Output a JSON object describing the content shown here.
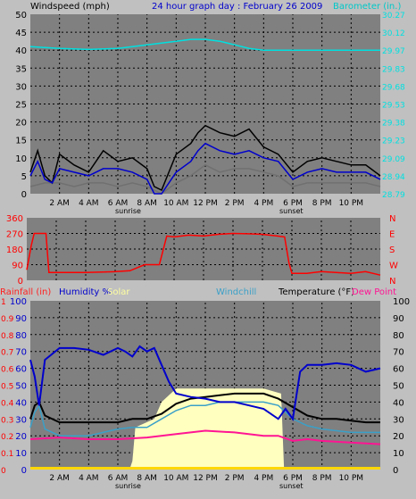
{
  "chart_data": [
    {
      "type": "line",
      "panel": "wind-baro",
      "title": "24 hour graph day : February 26 2009",
      "left_axis_label": "Windspeed (mph)",
      "right_axis_label": "Barometer (in.)",
      "left_ticks": [
        "0",
        "2",
        "4",
        "6",
        "8",
        "10",
        "12",
        "14",
        "16"
      ],
      "left_ylim": [
        0,
        16
      ],
      "left_tick_values": [
        0,
        5,
        10,
        15,
        20,
        25,
        30,
        35,
        40,
        45,
        50
      ],
      "left_tick_labels": [
        "0",
        "5",
        "10",
        "15",
        "20",
        "25",
        "30",
        "35",
        "40",
        "45",
        "50"
      ],
      "right_tick_labels": [
        "28.79",
        "28.94",
        "29.09",
        "29.23",
        "29.38",
        "29.53",
        "29.68",
        "29.83",
        "29.97",
        "30.12",
        "30.27"
      ],
      "x_tick_labels": [
        "2 AM",
        "4 AM",
        "6 AM",
        "8 AM",
        "10 AM",
        "12 PM",
        "2 PM",
        "4 PM",
        "6 PM",
        "8 PM",
        "10 PM"
      ],
      "x_annotations": [
        "sunrise",
        "sunset"
      ],
      "colors": {
        "wind_gust": "#000000",
        "wind_avg": "#0000cc",
        "wind_lo": "#707070",
        "barometer": "#00e0e0"
      },
      "series": [
        {
          "key": "barometer",
          "x": [
            0,
            2,
            4,
            6,
            8,
            9,
            10,
            11,
            12,
            13,
            14,
            15,
            16,
            18,
            20,
            22,
            24
          ],
          "values": [
            41,
            40.5,
            40.2,
            40.5,
            41.5,
            42,
            42.5,
            43,
            43,
            42.5,
            41.5,
            40.5,
            40,
            40,
            40,
            40,
            40
          ]
        },
        {
          "key": "wind_gust",
          "x": [
            0,
            0.5,
            1,
            1.5,
            2,
            3,
            4,
            5,
            6,
            7,
            8,
            8.5,
            9,
            10,
            11,
            11.5,
            12,
            13,
            14,
            15,
            16,
            17,
            18,
            19,
            20,
            21,
            22,
            23,
            24
          ],
          "values": [
            6,
            12,
            5,
            3,
            11,
            8,
            6,
            12,
            9,
            10,
            7,
            2,
            1,
            11,
            14,
            17,
            19,
            17,
            16,
            18,
            13,
            11,
            6,
            9,
            10,
            9,
            8,
            8,
            5
          ]
        },
        {
          "key": "wind_avg",
          "x": [
            0,
            0.5,
            1,
            1.5,
            2,
            3,
            4,
            5,
            6,
            7,
            8,
            8.5,
            9,
            10,
            11,
            11.5,
            12,
            13,
            14,
            15,
            16,
            17,
            18,
            19,
            20,
            21,
            22,
            23,
            24
          ],
          "values": [
            5,
            9,
            4,
            3,
            7,
            6,
            5,
            7,
            7,
            6,
            4,
            0,
            0,
            6,
            9,
            12,
            14,
            12,
            11,
            12,
            10,
            9,
            4,
            6,
            7,
            6,
            6,
            6,
            4
          ]
        },
        {
          "key": "wind_lo",
          "x": [
            0,
            1,
            2,
            3,
            4,
            5,
            6,
            7,
            8,
            9,
            10,
            11,
            12,
            13,
            14,
            15,
            16,
            17,
            18,
            19,
            20,
            21,
            22,
            23,
            24
          ],
          "values": [
            2,
            3,
            3,
            2,
            3,
            3,
            2,
            3,
            2,
            0,
            3,
            5,
            8,
            6,
            7,
            7,
            6,
            5,
            2,
            3,
            3,
            3,
            3,
            3,
            2
          ]
        }
      ]
    },
    {
      "type": "line",
      "panel": "wind-direction",
      "left_tick_labels": [
        "0",
        "90",
        "180",
        "270",
        "360"
      ],
      "right_tick_labels": [
        "N",
        "W",
        "S",
        "E",
        "N"
      ],
      "ylim": [
        0,
        360
      ],
      "colors": {
        "direction": "#ff0000"
      },
      "series": [
        {
          "key": "direction",
          "x": [
            0,
            0.3,
            0.5,
            1.3,
            1.5,
            2,
            4,
            6,
            7,
            8,
            8.5,
            9,
            9.5,
            10,
            11,
            12,
            13,
            14,
            15,
            16,
            17,
            17.5,
            17.8,
            18,
            19,
            20,
            21,
            22,
            23,
            24
          ],
          "values": [
            60,
            200,
            270,
            270,
            45,
            45,
            45,
            50,
            55,
            90,
            90,
            90,
            255,
            250,
            260,
            255,
            265,
            270,
            268,
            265,
            255,
            250,
            100,
            40,
            40,
            50,
            45,
            40,
            50,
            30
          ]
        }
      ]
    },
    {
      "type": "line",
      "panel": "temp-humidity",
      "header_labels": {
        "rainfall": "Rainfall (in)",
        "humidity": "Humidity %",
        "solar": "Solar",
        "windchill": "Windchill",
        "temperature": "Temperature (°F)",
        "dew_point": "Dew Point"
      },
      "left_outer_tick_labels": [
        "0",
        "0.1",
        "0.2",
        "0.3",
        "0.4",
        "0.5",
        "0.6",
        "0.7",
        "0.8",
        "0.9",
        "1"
      ],
      "left_inner_tick_labels": [
        "0",
        "10",
        "20",
        "30",
        "40",
        "50",
        "60",
        "70",
        "80",
        "90",
        "100"
      ],
      "right_tick_labels": [
        "0",
        "10",
        "20",
        "30",
        "40",
        "50",
        "60",
        "70",
        "80",
        "90",
        "100"
      ],
      "ylim": [
        0,
        100
      ],
      "colors": {
        "humidity": "#0000cc",
        "temperature": "#000000",
        "windchill": "#3aa0c8",
        "dew_point": "#ff1493",
        "solar": "#ffffc0",
        "rain": "#ffd700"
      },
      "series": [
        {
          "key": "solar",
          "x": [
            0,
            6.8,
            7,
            7.2,
            8.5,
            9,
            10,
            11,
            12,
            14,
            15,
            16,
            17.2,
            17.4,
            24
          ],
          "values": [
            0,
            0,
            5,
            25,
            30,
            40,
            48,
            48,
            48,
            48,
            48,
            48,
            45,
            0,
            0
          ]
        },
        {
          "key": "humidity",
          "x": [
            0,
            0.3,
            0.6,
            1,
            2,
            3,
            4,
            5,
            6,
            6.5,
            7,
            7.5,
            8,
            8.5,
            9,
            9.5,
            10,
            11,
            12,
            13,
            14,
            15,
            16,
            17,
            17.5,
            18,
            18.5,
            19,
            20,
            21,
            22,
            23,
            24
          ],
          "values": [
            65,
            55,
            38,
            65,
            72,
            72,
            71,
            68,
            72,
            70,
            67,
            73,
            70,
            72,
            62,
            52,
            45,
            43,
            42,
            40,
            40,
            38,
            36,
            30,
            36,
            30,
            58,
            62,
            62,
            63,
            62,
            58,
            60
          ]
        },
        {
          "key": "temperature",
          "x": [
            0,
            0.3,
            0.6,
            1,
            2,
            3,
            4,
            5,
            6,
            7,
            8,
            9,
            10,
            11,
            12,
            13,
            14,
            15,
            16,
            17,
            18,
            19,
            20,
            21,
            22,
            23,
            24
          ],
          "values": [
            30,
            38,
            40,
            32,
            28,
            28,
            28,
            28,
            28,
            30,
            30,
            33,
            39,
            42,
            43,
            44,
            45,
            45,
            45,
            42,
            37,
            32,
            30,
            30,
            29,
            28,
            28
          ]
        },
        {
          "key": "windchill",
          "x": [
            0,
            0.3,
            0.6,
            1,
            2,
            3,
            4,
            5,
            6,
            7,
            8,
            9,
            10,
            11,
            12,
            13,
            14,
            15,
            16,
            17,
            18,
            19,
            20,
            21,
            22,
            23,
            24
          ],
          "values": [
            25,
            34,
            38,
            24,
            20,
            20,
            20,
            22,
            24,
            25,
            25,
            30,
            35,
            38,
            38,
            40,
            40,
            40,
            40,
            38,
            30,
            26,
            24,
            23,
            22,
            22,
            22
          ]
        },
        {
          "key": "dew_point",
          "x": [
            0,
            2,
            4,
            6,
            8,
            10,
            12,
            14,
            16,
            17,
            18,
            19,
            20,
            22,
            24
          ],
          "values": [
            18,
            19,
            18,
            18,
            19,
            21,
            23,
            22,
            20,
            20,
            17,
            18,
            17,
            16,
            15
          ]
        }
      ]
    }
  ],
  "x_axis_hours": [
    "0",
    "24"
  ]
}
